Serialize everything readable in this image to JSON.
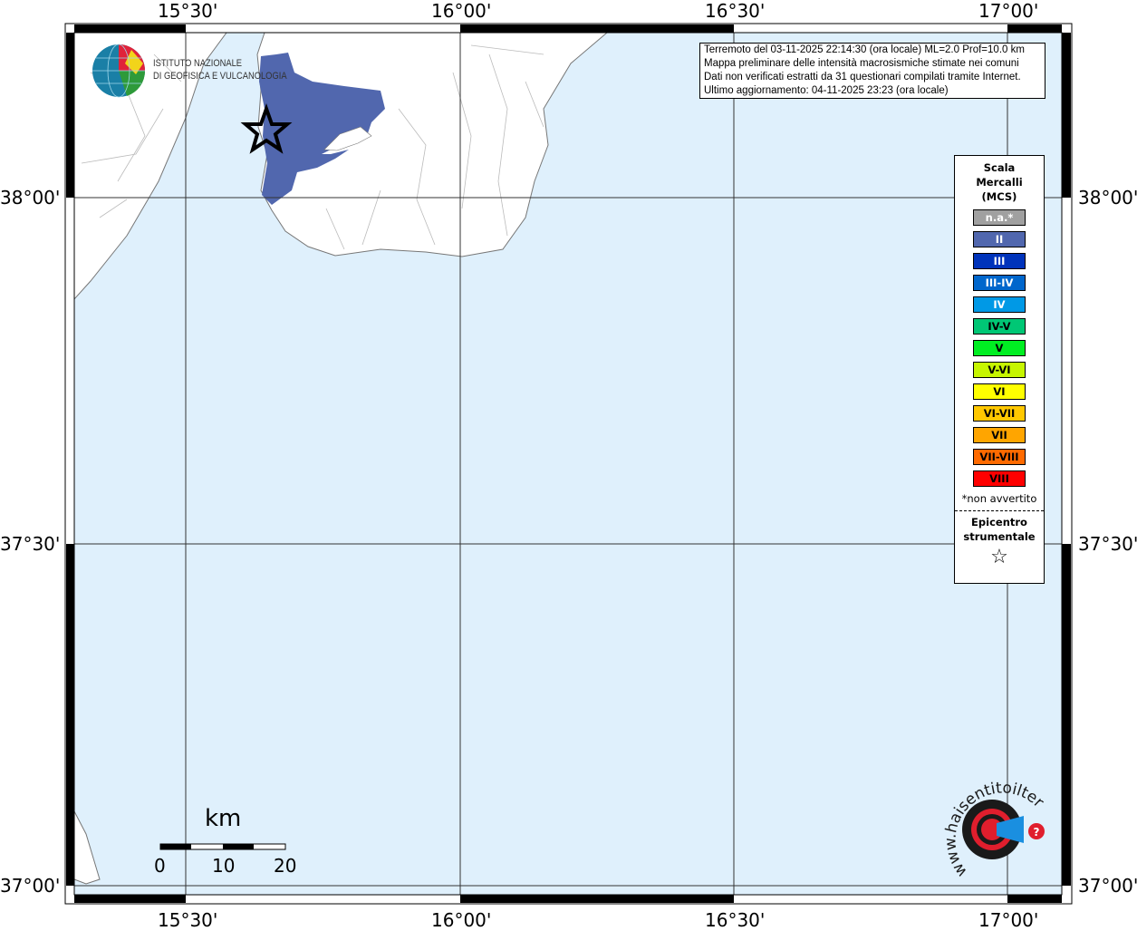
{
  "map": {
    "lon_ticks": [
      "15°30'",
      "16°00'",
      "16°30'",
      "17°00'"
    ],
    "lat_ticks": [
      "38°00'",
      "37°30'",
      "37°00'"
    ],
    "sea_color": "#dff0fc",
    "land_color": "#ffffff",
    "felt_color": "#5167ae"
  },
  "info": {
    "lines": [
      "Terremoto del 03-11-2025 22:14:30 (ora locale) ML=2.0 Prof=10.0 km",
      "Mappa preliminare delle intensità macrosismiche stimate nei comuni",
      "Dati non verificati estratti da 31 questionari compilati tramite Internet.",
      "Ultimo aggiornamento: 04-11-2025 23:23 (ora locale)"
    ]
  },
  "legend": {
    "title_lines": [
      "Scala",
      "Mercalli",
      "(MCS)"
    ],
    "items": [
      {
        "label": "n.a.*",
        "color": "#a0a0a0",
        "text": "#ffffff"
      },
      {
        "label": "II",
        "color": "#5167ae",
        "text": "#ffffff"
      },
      {
        "label": "III",
        "color": "#0033bb",
        "text": "#ffffff"
      },
      {
        "label": "III-IV",
        "color": "#0066cc",
        "text": "#ffffff"
      },
      {
        "label": "IV",
        "color": "#0099e6",
        "text": "#ffffff"
      },
      {
        "label": "IV-V",
        "color": "#00c775",
        "text": "#000000"
      },
      {
        "label": "V",
        "color": "#00ee22",
        "text": "#000000"
      },
      {
        "label": "V-VI",
        "color": "#c6f500",
        "text": "#000000"
      },
      {
        "label": "VI",
        "color": "#ffff00",
        "text": "#000000"
      },
      {
        "label": "VI-VII",
        "color": "#ffc800",
        "text": "#000000"
      },
      {
        "label": "VII",
        "color": "#ffa500",
        "text": "#000000"
      },
      {
        "label": "VII-VIII",
        "color": "#ff6a00",
        "text": "#000000"
      },
      {
        "label": "VIII",
        "color": "#ff0000",
        "text": "#000000"
      }
    ],
    "note": "*non avvertito",
    "epicenter_lines": [
      "Epicentro",
      "strumentale"
    ],
    "epicenter_icon": "star-outline-icon"
  },
  "logos": {
    "ingv": "ISTITUTO NAZIONALE DI GEOFISICA E VULCANOLOGIA",
    "ingv_lines": [
      "ISTITUTO NAZIONALE",
      "DI GEOFISICA E VULCANOLOGIA"
    ],
    "hsit": "www.haisentitoilterremoto.it"
  },
  "scale_bar": {
    "unit": "km",
    "labels": [
      "0",
      "10",
      "20"
    ]
  }
}
